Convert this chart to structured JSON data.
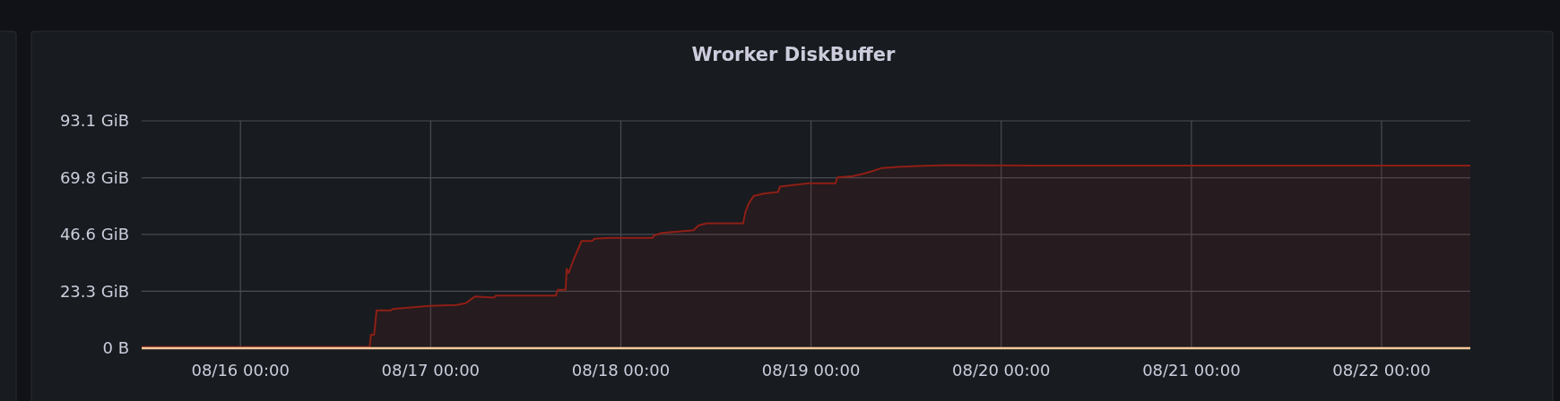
{
  "chart_data": {
    "type": "area",
    "title": "Wrorker DiskBuffer",
    "x": [
      "--08-15T11:32",
      "--08-16T16:18",
      "--08-16T16:28",
      "--08-16T16:52",
      "--08-16T17:11",
      "--08-16T18:59",
      "--08-16T19:12",
      "--08-16T21:11",
      "--08-16T23:48",
      "--08-17T03:13",
      "--08-17T04:25",
      "--08-17T05:37",
      "--08-17T08:01",
      "--08-17T08:12",
      "--08-17T15:49",
      "--08-17T16:02",
      "--08-17T17:02",
      "--08-17T17:10",
      "--08-17T17:25",
      "--08-17T18:01",
      "--08-17T18:37",
      "--08-17T19:02",
      "--08-17T20:25",
      "--08-17T20:38",
      "--08-17T22:38",
      "--08-18T04:02",
      "--08-18T04:09",
      "--08-18T05:10",
      "--08-18T07:47",
      "--08-18T09:11",
      "--08-18T09:47",
      "--08-18T10:48",
      "--08-18T15:26",
      "--08-18T15:42",
      "--08-18T16:06",
      "--08-18T16:45",
      "--08-18T18:03",
      "--08-18T19:51",
      "--08-18T20:04",
      "--08-18T21:16",
      "--08-18T23:41",
      "--08-19T03:06",
      "--08-19T03:19",
      "--08-19T05:18",
      "--08-19T06:32",
      "--08-19T07:44",
      "--08-19T08:56",
      "--08-19T11:21",
      "--08-19T14:11",
      "--08-19T17:24",
      "--08-20T04:48",
      "--08-22T11:12"
    ],
    "series": [
      {
        "color": "#8e1f16",
        "values": [
          0.5,
          0.5,
          5.5,
          5.5,
          15.5,
          15.5,
          16.0,
          16.6,
          17.3,
          17.7,
          18.4,
          21.2,
          20.7,
          21.5,
          21.5,
          23.9,
          23.9,
          32.5,
          30.8,
          36.1,
          40.6,
          43.9,
          43.9,
          44.8,
          45.2,
          45.2,
          46.1,
          47.2,
          47.9,
          48.3,
          50.2,
          51.1,
          51.1,
          55.5,
          59.0,
          62.3,
          63.3,
          64.0,
          66.2,
          66.6,
          67.5,
          67.5,
          69.9,
          70.5,
          71.4,
          72.5,
          73.8,
          74.3,
          74.7,
          75.0,
          74.8,
          74.8
        ]
      },
      {
        "type": "line",
        "color": "#f4c99a",
        "x": [
          "--08-15T11:32",
          "--08-22T11:12"
        ],
        "values": [
          0,
          0
        ]
      }
    ],
    "xlim": [
      "--08-15T11:32",
      "--08-22T11:12"
    ],
    "xticks": [
      {
        "value": "--08-16T00:00",
        "label": "08/16 00:00"
      },
      {
        "value": "--08-17T00:00",
        "label": "08/17 00:00"
      },
      {
        "value": "--08-18T00:00",
        "label": "08/18 00:00"
      },
      {
        "value": "--08-19T00:00",
        "label": "08/19 00:00"
      },
      {
        "value": "--08-20T00:00",
        "label": "08/20 00:00"
      },
      {
        "value": "--08-21T00:00",
        "label": "08/21 00:00"
      },
      {
        "value": "--08-22T00:00",
        "label": "08/22 00:00"
      }
    ],
    "ylim": [
      0,
      93.1
    ],
    "yticks": [
      {
        "value": 0,
        "label": "0 B"
      },
      {
        "value": 23.3,
        "label": "23.3 GiB"
      },
      {
        "value": 46.6,
        "label": "46.6 GiB"
      },
      {
        "value": 69.8,
        "label": "69.8 GiB"
      },
      {
        "value": 93.1,
        "label": "93.1 GiB"
      }
    ],
    "grid": true
  }
}
